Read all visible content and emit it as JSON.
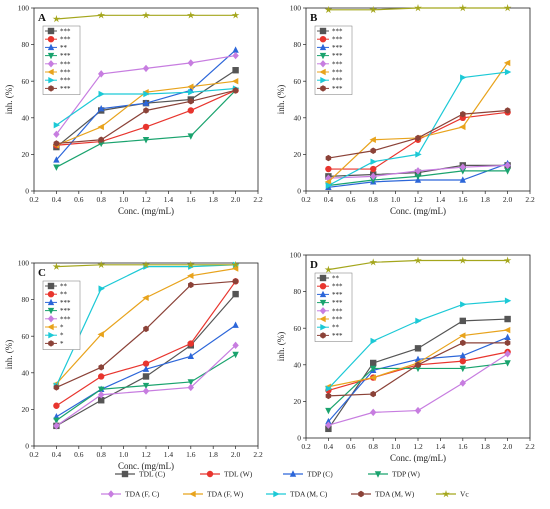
{
  "chart_data": {
    "type": "line",
    "x": [
      0.4,
      0.8,
      1.2,
      1.6,
      2.0
    ],
    "xlabel": "Conc.  (mg/mL)",
    "ylabel": "inh.  (%)",
    "xlim": [
      0.2,
      2.2
    ],
    "ylim": [
      0,
      100
    ],
    "xticks": [
      "0.2",
      "0.4",
      "0.6",
      "0.8",
      "1.0",
      "1.2",
      "1.4",
      "1.6",
      "1.8",
      "2.0",
      "2.2"
    ],
    "yticks": [
      "0",
      "20",
      "40",
      "60",
      "80",
      "100"
    ],
    "legend": [
      {
        "name": "TDL (C)",
        "color": "#555555",
        "marker": "square"
      },
      {
        "name": "TDL (W)",
        "color": "#e8352e",
        "marker": "circle"
      },
      {
        "name": "TDP (C)",
        "color": "#2c66d9",
        "marker": "triangle-up"
      },
      {
        "name": "TDP (W)",
        "color": "#1aa36e",
        "marker": "triangle-down"
      },
      {
        "name": "TDA (F, C)",
        "color": "#c77de0",
        "marker": "diamond"
      },
      {
        "name": "TDA (F, W)",
        "color": "#e8a31c",
        "marker": "triangle-left"
      },
      {
        "name": "TDA (M, C)",
        "color": "#1cc9d6",
        "marker": "triangle-right"
      },
      {
        "name": "TDA (M, W)",
        "color": "#8b4238",
        "marker": "hexagon"
      },
      {
        "name": "Vc",
        "color": "#a4a61c",
        "marker": "star"
      }
    ],
    "panels": [
      {
        "label": "A",
        "significance": [
          "***",
          "***",
          "**",
          "***",
          "***",
          "***",
          "***",
          "***"
        ],
        "series": [
          [
            24,
            44,
            48,
            50,
            66
          ],
          [
            25,
            27,
            35,
            44,
            55
          ],
          [
            17,
            45,
            48,
            55,
            77
          ],
          [
            13,
            26,
            28,
            30,
            55
          ],
          [
            31,
            64,
            67,
            70,
            74
          ],
          [
            25,
            35,
            54,
            57,
            60
          ],
          [
            36,
            53,
            53,
            54,
            56
          ],
          [
            26,
            28,
            44,
            49,
            55
          ],
          [
            94,
            96,
            96,
            96,
            96
          ]
        ]
      },
      {
        "label": "B",
        "significance": [
          "***",
          "***",
          "***",
          "***",
          "***",
          "***",
          "***",
          "***"
        ],
        "series": [
          [
            8,
            9,
            10,
            14,
            14
          ],
          [
            12,
            12,
            28,
            40,
            43
          ],
          [
            2,
            5,
            6,
            6,
            15
          ],
          [
            3,
            6,
            8,
            11,
            11
          ],
          [
            7,
            8,
            11,
            13,
            14
          ],
          [
            5,
            28,
            29,
            35,
            70
          ],
          [
            3,
            16,
            20,
            62,
            65
          ],
          [
            18,
            22,
            29,
            42,
            44
          ],
          [
            99,
            99,
            100,
            100,
            100
          ]
        ]
      },
      {
        "label": "C",
        "significance": [
          "**",
          "**",
          "***",
          "***",
          "***",
          "*",
          "*",
          "*"
        ],
        "series": [
          [
            11,
            25,
            38,
            55,
            83
          ],
          [
            22,
            38,
            45,
            56,
            90
          ],
          [
            16,
            31,
            42,
            49,
            66
          ],
          [
            14,
            31,
            33,
            35,
            50
          ],
          [
            11,
            28,
            30,
            32,
            55
          ],
          [
            34,
            61,
            81,
            93,
            97
          ],
          [
            33,
            86,
            98,
            98,
            99
          ],
          [
            32,
            43,
            64,
            88,
            90
          ],
          [
            98,
            99,
            99,
            99,
            99
          ]
        ]
      },
      {
        "label": "D",
        "significance": [
          "**",
          "***",
          "***",
          "***",
          "***",
          "***",
          "**",
          "***"
        ],
        "series": [
          [
            5,
            41,
            49,
            64,
            65
          ],
          [
            26,
            33,
            40,
            42,
            47
          ],
          [
            9,
            37,
            43,
            45,
            55
          ],
          [
            15,
            38,
            38,
            38,
            41
          ],
          [
            7,
            14,
            15,
            30,
            46
          ],
          [
            28,
            33,
            41,
            56,
            59
          ],
          [
            27,
            53,
            64,
            73,
            75
          ],
          [
            23,
            24,
            40,
            52,
            52
          ],
          [
            92,
            96,
            97,
            97,
            97
          ]
        ]
      }
    ]
  }
}
